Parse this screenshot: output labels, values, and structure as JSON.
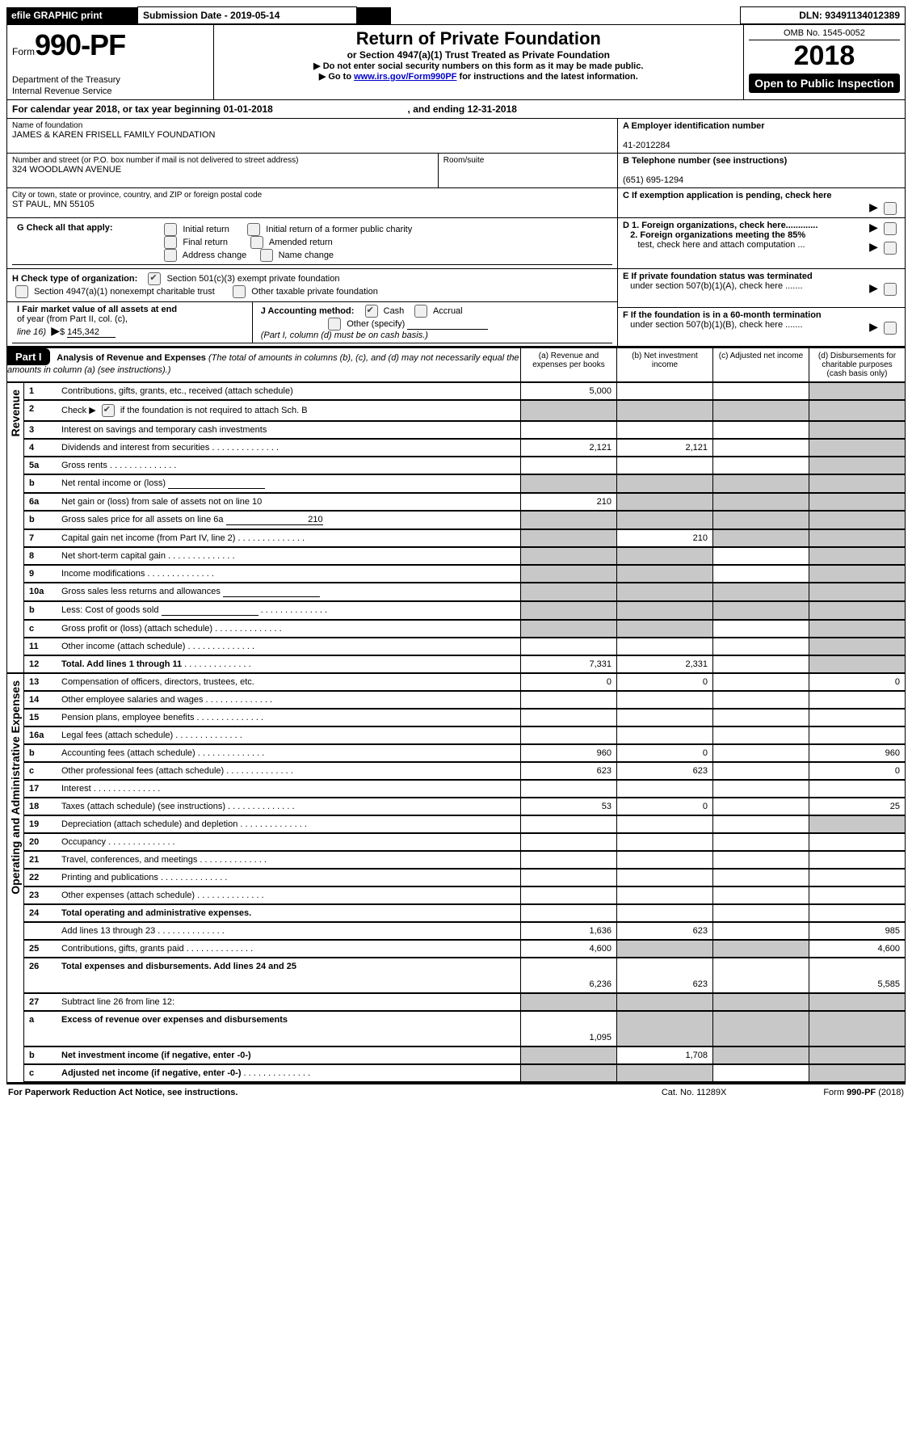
{
  "topbar": {
    "efile": "efile GRAPHIC print",
    "sub_label": "Submission Date - 2019-05-14",
    "dln_label": "DLN: 93491134012389"
  },
  "header": {
    "form_word": "Form",
    "form_num": "990-PF",
    "dept1": "Department of the Treasury",
    "dept2": "Internal Revenue Service",
    "title": "Return of Private Foundation",
    "subtitle": "or Section 4947(a)(1) Trust Treated as Private Foundation",
    "note1": "Do not enter social security numbers on this form as it may be made public.",
    "note2_pre": "Go to ",
    "note2_link": "www.irs.gov/Form990PF",
    "note2_post": " for instructions and the latest information.",
    "omb": "OMB No. 1545-0052",
    "year": "2018",
    "open": "Open to Public Inspection"
  },
  "calendar_line": {
    "pre": "For calendar year 2018, or tax year beginning ",
    "begin": "01-01-2018",
    "mid": ", and ending ",
    "end": "12-31-2018"
  },
  "entity": {
    "name_lbl": "Name of foundation",
    "name": "JAMES & KAREN FRISELL FAMILY FOUNDATION",
    "addr_lbl": "Number and street (or P.O. box number if mail is not delivered to street address)",
    "addr": "324 WOODLAWN AVENUE",
    "room_lbl": "Room/suite",
    "city_lbl": "City or town, state or province, country, and ZIP or foreign postal code",
    "city": "ST PAUL, MN  55105",
    "A_lbl": "A Employer identification number",
    "A_val": "41-2012284",
    "B_lbl": "B Telephone number (see instructions)",
    "B_val": "(651) 695-1294",
    "C_lbl": "C  If exemption application is pending, check here"
  },
  "G": {
    "label": "G Check all that apply:",
    "opts": [
      "Initial return",
      "Initial return of a former public charity",
      "Final return",
      "Amended return",
      "Address change",
      "Name change"
    ]
  },
  "H": {
    "label": "H Check type of organization:",
    "opt1": "Section 501(c)(3) exempt private foundation",
    "opt2": "Section 4947(a)(1) nonexempt charitable trust",
    "opt3": "Other taxable private foundation"
  },
  "I": {
    "label_a": "I Fair market value of all assets at end",
    "label_b": "of year (from Part II, col. (c),",
    "label_c": "line 16)",
    "value": "145,342"
  },
  "J": {
    "label": "J Accounting method:",
    "cash": "Cash",
    "accr": "Accrual",
    "other": "Other (specify)",
    "note": "(Part I, column (d) must be on cash basis.)"
  },
  "right_checks": {
    "D1": "D 1. Foreign organizations, check here.............",
    "D2a": "2. Foreign organizations meeting the 85%",
    "D2b": "test, check here and attach computation ...",
    "E1": "E   If private foundation status was terminated",
    "E2": "under section 507(b)(1)(A), check here .......",
    "F1": "F   If the foundation is in a 60-month termination",
    "F2": "under section 507(b)(1)(B), check here ......."
  },
  "part1": {
    "tag": "Part I",
    "title": "Analysis of Revenue and Expenses",
    "title_note": " (The total of amounts in columns (b), (c), and (d) may not necessarily equal the amounts in column (a) (see instructions).)",
    "cols": {
      "a": "(a)    Revenue and expenses per books",
      "b": "(b)    Net investment income",
      "c": "(c)    Adjusted net income",
      "d": "(d)    Disbursements for charitable purposes (cash basis only)"
    },
    "side_rev": "Revenue",
    "side_exp": "Operating and Administrative Expenses"
  },
  "rows": [
    {
      "n": "1",
      "label": "Contributions, gifts, grants, etc., received (attach schedule)",
      "a": "5,000",
      "b": "",
      "c": "",
      "d": "",
      "d_shade": true
    },
    {
      "n": "2",
      "label": "Check ▶",
      "label2": " if the foundation is not required to attach Sch. B",
      "check": true,
      "a": "",
      "b": "",
      "c": "",
      "d": "",
      "a_shade": true,
      "b_shade": true,
      "c_shade": true,
      "d_shade": true
    },
    {
      "n": "3",
      "label": "Interest on savings and temporary cash investments",
      "a": "",
      "b": "",
      "c": "",
      "d": "",
      "d_shade": true
    },
    {
      "n": "4",
      "label": "Dividends and interest from securities",
      "dots": true,
      "a": "2,121",
      "b": "2,121",
      "c": "",
      "d": "",
      "d_shade": true
    },
    {
      "n": "5a",
      "label": "Gross rents",
      "dots": true,
      "a": "",
      "b": "",
      "c": "",
      "d": "",
      "d_shade": true
    },
    {
      "n": "b",
      "label": "Net rental income or (loss)",
      "inline_box": true,
      "a": "",
      "b": "",
      "c": "",
      "d": "",
      "a_shade": true,
      "b_shade": true,
      "c_shade": true,
      "d_shade": true
    },
    {
      "n": "6a",
      "label": "Net gain or (loss) from sale of assets not on line 10",
      "a": "210",
      "b": "",
      "c": "",
      "d": "",
      "b_shade": true,
      "c_shade": true,
      "d_shade": true
    },
    {
      "n": "b",
      "label": "Gross sales price for all assets on line 6a",
      "inline_val": "210",
      "a": "",
      "b": "",
      "c": "",
      "d": "",
      "a_shade": true,
      "b_shade": true,
      "c_shade": true,
      "d_shade": true
    },
    {
      "n": "7",
      "label": "Capital gain net income (from Part IV, line 2)",
      "dots": true,
      "a": "",
      "b": "210",
      "c": "",
      "d": "",
      "a_shade": true,
      "c_shade": true,
      "d_shade": true
    },
    {
      "n": "8",
      "label": "Net short-term capital gain",
      "dots": true,
      "a": "",
      "b": "",
      "c": "",
      "d": "",
      "a_shade": true,
      "b_shade": true,
      "d_shade": true
    },
    {
      "n": "9",
      "label": "Income modifications",
      "dots": true,
      "a": "",
      "b": "",
      "c": "",
      "d": "",
      "a_shade": true,
      "b_shade": true,
      "d_shade": true
    },
    {
      "n": "10a",
      "label": "Gross sales less returns and allowances",
      "inline_box": true,
      "a": "",
      "b": "",
      "c": "",
      "d": "",
      "a_shade": true,
      "b_shade": true,
      "c_shade": true,
      "d_shade": true
    },
    {
      "n": "b",
      "label": "Less: Cost of goods sold",
      "dots": true,
      "inline_box": true,
      "a": "",
      "b": "",
      "c": "",
      "d": "",
      "a_shade": true,
      "b_shade": true,
      "c_shade": true,
      "d_shade": true
    },
    {
      "n": "c",
      "label": "Gross profit or (loss) (attach schedule)",
      "dots": true,
      "a": "",
      "b": "",
      "c": "",
      "d": "",
      "a_shade": true,
      "b_shade": true,
      "d_shade": true
    },
    {
      "n": "11",
      "label": "Other income (attach schedule)",
      "dots": true,
      "a": "",
      "b": "",
      "c": "",
      "d": "",
      "d_shade": true
    },
    {
      "n": "12",
      "label": "Total. Add lines 1 through 11",
      "bold": true,
      "dots": true,
      "a": "7,331",
      "b": "2,331",
      "c": "",
      "d": "",
      "d_shade": true
    },
    {
      "n": "13",
      "label": "Compensation of officers, directors, trustees, etc.",
      "a": "0",
      "b": "0",
      "c": "",
      "d": "0"
    },
    {
      "n": "14",
      "label": "Other employee salaries and wages",
      "dots": true,
      "a": "",
      "b": "",
      "c": "",
      "d": ""
    },
    {
      "n": "15",
      "label": "Pension plans, employee benefits",
      "dots": true,
      "a": "",
      "b": "",
      "c": "",
      "d": ""
    },
    {
      "n": "16a",
      "label": "Legal fees (attach schedule)",
      "dots": true,
      "a": "",
      "b": "",
      "c": "",
      "d": ""
    },
    {
      "n": "b",
      "label": "Accounting fees (attach schedule)",
      "dots": true,
      "a": "960",
      "b": "0",
      "c": "",
      "d": "960"
    },
    {
      "n": "c",
      "label": "Other professional fees (attach schedule)",
      "dots": true,
      "a": "623",
      "b": "623",
      "c": "",
      "d": "0"
    },
    {
      "n": "17",
      "label": "Interest",
      "dots": true,
      "a": "",
      "b": "",
      "c": "",
      "d": ""
    },
    {
      "n": "18",
      "label": "Taxes (attach schedule) (see instructions)",
      "dots": true,
      "a": "53",
      "b": "0",
      "c": "",
      "d": "25"
    },
    {
      "n": "19",
      "label": "Depreciation (attach schedule) and depletion",
      "dots": true,
      "a": "",
      "b": "",
      "c": "",
      "d": "",
      "d_shade": true
    },
    {
      "n": "20",
      "label": "Occupancy",
      "dots": true,
      "a": "",
      "b": "",
      "c": "",
      "d": ""
    },
    {
      "n": "21",
      "label": "Travel, conferences, and meetings",
      "dots": true,
      "a": "",
      "b": "",
      "c": "",
      "d": ""
    },
    {
      "n": "22",
      "label": "Printing and publications",
      "dots": true,
      "a": "",
      "b": "",
      "c": "",
      "d": ""
    },
    {
      "n": "23",
      "label": "Other expenses (attach schedule)",
      "dots": true,
      "a": "",
      "b": "",
      "c": "",
      "d": ""
    },
    {
      "n": "24",
      "label": "Total operating and administrative expenses.",
      "bold": true,
      "a": "",
      "b": "",
      "c": "",
      "d": "",
      "no_bottom": true
    },
    {
      "n": "",
      "label": "Add lines 13 through 23",
      "dots": true,
      "a": "1,636",
      "b": "623",
      "c": "",
      "d": "985"
    },
    {
      "n": "25",
      "label": "Contributions, gifts, grants paid",
      "dots": true,
      "a": "4,600",
      "b": "",
      "c": "",
      "d": "4,600",
      "b_shade": true,
      "c_shade": true
    },
    {
      "n": "26",
      "label": "Total expenses and disbursements. Add lines 24 and 25",
      "bold": true,
      "a": "6,236",
      "b": "623",
      "c": "",
      "d": "5,585",
      "tall": true
    },
    {
      "n": "27",
      "label": "Subtract line 26 from line 12:",
      "a": "",
      "b": "",
      "c": "",
      "d": "",
      "a_shade": true,
      "b_shade": true,
      "c_shade": true,
      "d_shade": true
    },
    {
      "n": "a",
      "label": "Excess of revenue over expenses and disbursements",
      "bold": true,
      "a": "1,095",
      "b": "",
      "c": "",
      "d": "",
      "b_shade": true,
      "c_shade": true,
      "d_shade": true,
      "tall": true
    },
    {
      "n": "b",
      "label": "Net investment income (if negative, enter -0-)",
      "bold": true,
      "a": "",
      "b": "1,708",
      "c": "",
      "d": "",
      "a_shade": true,
      "c_shade": true,
      "d_shade": true
    },
    {
      "n": "c",
      "label": "Adjusted net income (if negative, enter -0-)",
      "bold": true,
      "dots": true,
      "a": "",
      "b": "",
      "c": "",
      "d": "",
      "a_shade": true,
      "b_shade": true,
      "d_shade": true
    }
  ],
  "footer": {
    "left": "For Paperwork Reduction Act Notice, see instructions.",
    "mid": "Cat. No. 11289X",
    "right_a": "Form ",
    "right_b": "990-PF",
    "right_c": " (2018)"
  }
}
